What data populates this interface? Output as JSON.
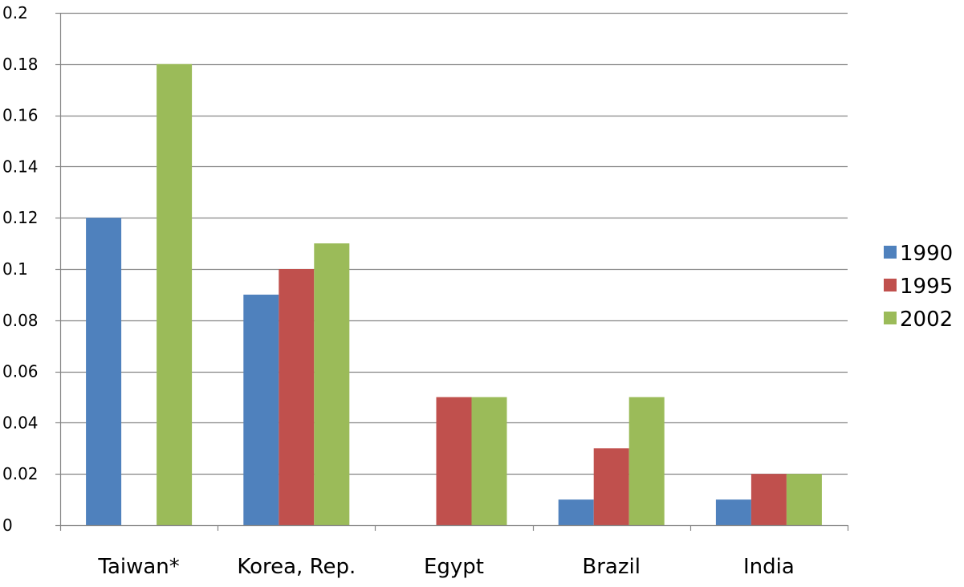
{
  "chart_data": {
    "type": "bar",
    "title": "",
    "xlabel": "",
    "ylabel": "",
    "categories": [
      "Taiwan*",
      "Korea, Rep.",
      "Egypt",
      "Brazil",
      "India"
    ],
    "series": [
      {
        "name": "1990",
        "color": "#4F81BD",
        "values": [
          0.12,
          0.09,
          0,
          0.01,
          0.01
        ]
      },
      {
        "name": "1995",
        "color": "#C0504D",
        "values": [
          0,
          0.1,
          0.05,
          0.03,
          0.02
        ]
      },
      {
        "name": "2002",
        "color": "#9BBB59",
        "values": [
          0.18,
          0.11,
          0.05,
          0.05,
          0.02
        ]
      }
    ],
    "ylim": [
      0,
      0.2
    ],
    "yticks": [
      "0",
      "0.02",
      "0.04",
      "0.06",
      "0.08",
      "0.1",
      "0.12",
      "0.14",
      "0.16",
      "0.18",
      "0.2"
    ],
    "grid": true,
    "legend": "right"
  }
}
